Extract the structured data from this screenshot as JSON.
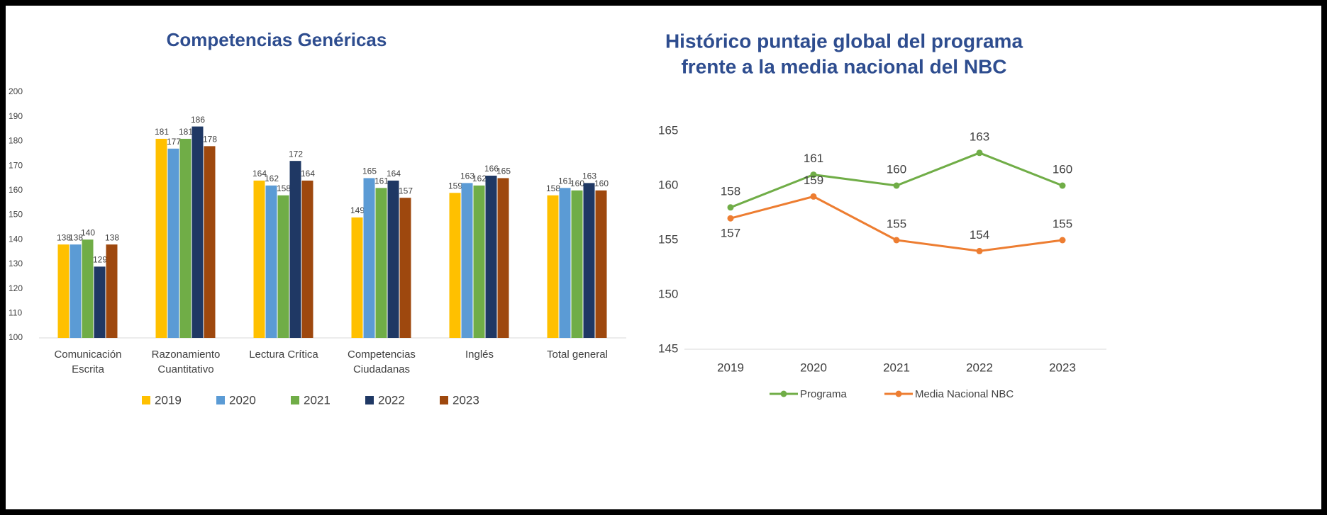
{
  "chart_data": [
    {
      "type": "bar",
      "title": "Competencias Genéricas",
      "categories": [
        "Comunicación Escrita",
        "Razonamiento Cuantitativo",
        "Lectura Crítica",
        "Competencias Ciudadanas",
        "Inglés",
        "Total general"
      ],
      "series": [
        {
          "name": "2019",
          "color": "#FFC000",
          "values": [
            138,
            181,
            164,
            149,
            159,
            158
          ]
        },
        {
          "name": "2020",
          "color": "#5B9BD5",
          "values": [
            138,
            177,
            162,
            165,
            163,
            161
          ]
        },
        {
          "name": "2021",
          "color": "#70AD47",
          "values": [
            140,
            181,
            158,
            161,
            162,
            160
          ]
        },
        {
          "name": "2022",
          "color": "#1F3864",
          "values": [
            129,
            186,
            172,
            164,
            166,
            163
          ]
        },
        {
          "name": "2023",
          "color": "#9E480E",
          "values": [
            138,
            178,
            164,
            157,
            165,
            160
          ]
        }
      ],
      "ylim": [
        100,
        200
      ],
      "yticks": [
        100,
        110,
        120,
        130,
        140,
        150,
        160,
        170,
        180,
        190,
        200
      ],
      "legend": "bottom"
    },
    {
      "type": "line",
      "title": [
        "Histórico puntaje global del programa",
        "frente a la media nacional del NBC"
      ],
      "categories": [
        "2019",
        "2020",
        "2021",
        "2022",
        "2023"
      ],
      "series": [
        {
          "name": "Programa",
          "color": "#70AD47",
          "values": [
            158,
            161,
            160,
            163,
            160
          ]
        },
        {
          "name": "Media Nacional NBC",
          "color": "#ED7D31",
          "values": [
            157,
            159,
            155,
            154,
            155
          ]
        }
      ],
      "ylim": [
        145,
        165
      ],
      "yticks": [
        145,
        150,
        155,
        160,
        165
      ],
      "legend": "bottom"
    }
  ]
}
